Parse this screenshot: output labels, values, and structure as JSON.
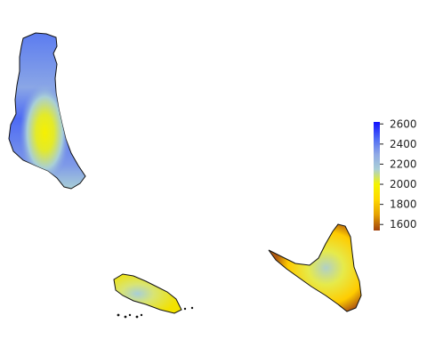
{
  "map": {
    "type": "raster-heatmap",
    "features": [
      {
        "name": "",
        "shape": "elongated island, north-south",
        "fill": "mostly blue with yellow core"
      },
      {
        "name": "",
        "shape": "small elongated island",
        "fill": "yellow with light-blue center"
      },
      {
        "name": "",
        "shape": "triangular island",
        "fill": "yellow/orange with light-blue center"
      }
    ]
  },
  "legend": {
    "ticks": [
      "2600",
      "2400",
      "2200",
      "2000",
      "1800",
      "1600"
    ],
    "tick_values": [
      2600,
      2400,
      2200,
      2000,
      1800,
      1600
    ],
    "range": [
      1540,
      2620
    ],
    "colors": [
      {
        "value": 1540,
        "color": "#a0420e"
      },
      {
        "value": 1700,
        "color": "#e6a200"
      },
      {
        "value": 1850,
        "color": "#ffd800"
      },
      {
        "value": 2000,
        "color": "#f4f400"
      },
      {
        "value": 2150,
        "color": "#a9cfd7"
      },
      {
        "value": 2300,
        "color": "#8fa8e6"
      },
      {
        "value": 2450,
        "color": "#4f6cf4"
      },
      {
        "value": 2620,
        "color": "#1010ff"
      }
    ]
  }
}
